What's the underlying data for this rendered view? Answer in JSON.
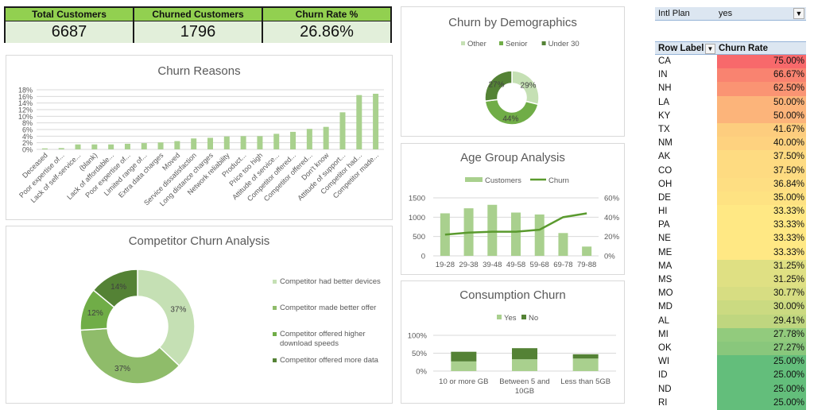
{
  "kpis": [
    {
      "label": "Total Customers",
      "value": "6687"
    },
    {
      "label": "Churned Customers",
      "value": "1796"
    },
    {
      "label": "Churn Rate %",
      "value": "26.86%"
    }
  ],
  "colors": {
    "kpi_header": "#92d050",
    "kpi_body": "#e2efda",
    "bar": "#a9d18e",
    "light_green": "#c5e0b4",
    "mid_green": "#70ad47",
    "dark_green": "#548235",
    "age_bar": "#a9d08e",
    "line": "#5a9a2e"
  },
  "pivot": {
    "filter_label": "Intl Plan",
    "filter_value": "yes",
    "filter_icon": "filter-icon",
    "col1_header": "Row Label",
    "col2_header": "Churn Rate",
    "sort_icon": "sort-filter-icon",
    "rows": [
      {
        "state": "CA",
        "rate": "75.00%",
        "color": "#f8696b"
      },
      {
        "state": "IN",
        "rate": "66.67%",
        "color": "#f98370"
      },
      {
        "state": "NH",
        "rate": "62.50%",
        "color": "#fa9473"
      },
      {
        "state": "LA",
        "rate": "50.00%",
        "color": "#fcb47a"
      },
      {
        "state": "KY",
        "rate": "50.00%",
        "color": "#fcb47a"
      },
      {
        "state": "TX",
        "rate": "41.67%",
        "color": "#fdcd7e"
      },
      {
        "state": "NM",
        "rate": "40.00%",
        "color": "#fed27f"
      },
      {
        "state": "AK",
        "rate": "37.50%",
        "color": "#fedb81"
      },
      {
        "state": "CO",
        "rate": "37.50%",
        "color": "#fedb81"
      },
      {
        "state": "OH",
        "rate": "36.84%",
        "color": "#fede82"
      },
      {
        "state": "DE",
        "rate": "35.00%",
        "color": "#fee282"
      },
      {
        "state": "HI",
        "rate": "33.33%",
        "color": "#ffe884"
      },
      {
        "state": "PA",
        "rate": "33.33%",
        "color": "#ffe884"
      },
      {
        "state": "NE",
        "rate": "33.33%",
        "color": "#ffe884"
      },
      {
        "state": "ME",
        "rate": "33.33%",
        "color": "#ffe884"
      },
      {
        "state": "MA",
        "rate": "31.25%",
        "color": "#dfe083"
      },
      {
        "state": "MS",
        "rate": "31.25%",
        "color": "#dfe083"
      },
      {
        "state": "MO",
        "rate": "30.77%",
        "color": "#d7dd82"
      },
      {
        "state": "MD",
        "rate": "30.00%",
        "color": "#cbda81"
      },
      {
        "state": "AL",
        "rate": "29.41%",
        "color": "#bfd67f"
      },
      {
        "state": "MI",
        "rate": "27.78%",
        "color": "#92cb7d"
      },
      {
        "state": "OK",
        "rate": "27.27%",
        "color": "#89c77c"
      },
      {
        "state": "WI",
        "rate": "25.00%",
        "color": "#63be7b"
      },
      {
        "state": "ID",
        "rate": "25.00%",
        "color": "#63be7b"
      },
      {
        "state": "ND",
        "rate": "25.00%",
        "color": "#63be7b"
      },
      {
        "state": "RI",
        "rate": "25.00%",
        "color": "#63be7b"
      }
    ]
  },
  "chart_data": [
    {
      "id": "churn-reasons",
      "type": "bar",
      "title": "Churn Reasons",
      "categories": [
        "Deceased",
        "Poor expertise of...",
        "Lack of self-service...",
        "(blank)",
        "Lack of affordable...",
        "Poor expertise of...",
        "Limited range of...",
        "Extra data charges",
        "Moved",
        "Service dissatisfaction",
        "Long distance charges",
        "Network reliability",
        "Product...",
        "Price too high",
        "Attitude of service...",
        "Competitor offered...",
        "Competitor offered...",
        "Don't know",
        "Attitude of support...",
        "Competitor had...",
        "Competitor made..."
      ],
      "values": [
        0.3,
        0.4,
        1.5,
        1.5,
        1.5,
        1.7,
        1.9,
        2.1,
        2.5,
        3.3,
        3.5,
        3.9,
        4.0,
        4.0,
        4.7,
        5.3,
        6.2,
        6.8,
        11.2,
        16.4,
        16.8
      ],
      "ylim": [
        0,
        18
      ],
      "yticks": [
        "0%",
        "2%",
        "4%",
        "6%",
        "8%",
        "10%",
        "12%",
        "14%",
        "16%",
        "18%"
      ],
      "grid": true
    },
    {
      "id": "demographics",
      "type": "pie",
      "title": "Churn by Demographics",
      "labels": [
        "Other",
        "Senior",
        "Under 30"
      ],
      "values": [
        29,
        44,
        27
      ],
      "data_labels": [
        "29%",
        "44%",
        "27%"
      ],
      "legend": "top"
    },
    {
      "id": "competitor",
      "type": "pie",
      "title": "Competitor Churn Analysis",
      "labels": [
        "Competitor had better devices",
        "Competitor made better offer",
        "Competitor offered higher download speeds",
        "Competitor offered more data"
      ],
      "legend_lines": [
        [
          "Competitor had better devices"
        ],
        [
          "Competitor made better offer"
        ],
        [
          "Competitor offered higher",
          "download speeds"
        ],
        [
          "Competitor offered more data"
        ]
      ],
      "values": [
        37,
        37,
        12,
        14
      ],
      "data_labels": [
        "37%",
        "37%",
        "12%",
        "14%"
      ],
      "legend": "right"
    },
    {
      "id": "age-group",
      "type": "bar",
      "title": "Age Group Analysis",
      "categories": [
        "19-28",
        "29-38",
        "39-48",
        "49-58",
        "59-68",
        "69-78",
        "79-88"
      ],
      "series": [
        {
          "name": "Customers",
          "type": "bar",
          "axis": "left",
          "values": [
            1100,
            1230,
            1320,
            1120,
            1070,
            590,
            240
          ]
        },
        {
          "name": "Churn",
          "type": "line",
          "axis": "right",
          "values": [
            22,
            24,
            25,
            25,
            27,
            40,
            44
          ]
        }
      ],
      "ylim": [
        0,
        1500
      ],
      "yticks": [
        "0",
        "500",
        "1000",
        "1500"
      ],
      "y2lim": [
        0,
        60
      ],
      "y2ticks": [
        "0%",
        "20%",
        "40%",
        "60%"
      ],
      "legend": "top",
      "grid": true
    },
    {
      "id": "consumption",
      "type": "bar",
      "title": "Consumption Churn",
      "categories": [
        [
          "10 or more GB"
        ],
        [
          "Between 5 and",
          "10GB"
        ],
        [
          "Less than 5GB"
        ]
      ],
      "series": [
        {
          "name": "Yes",
          "values": [
            27,
            33,
            35
          ]
        },
        {
          "name": "No",
          "values": [
            27,
            31,
            12
          ]
        }
      ],
      "stacked": true,
      "ylim": [
        0,
        100
      ],
      "yticks": [
        "0%",
        "50%",
        "100%"
      ],
      "legend": "top",
      "grid": true
    }
  ]
}
